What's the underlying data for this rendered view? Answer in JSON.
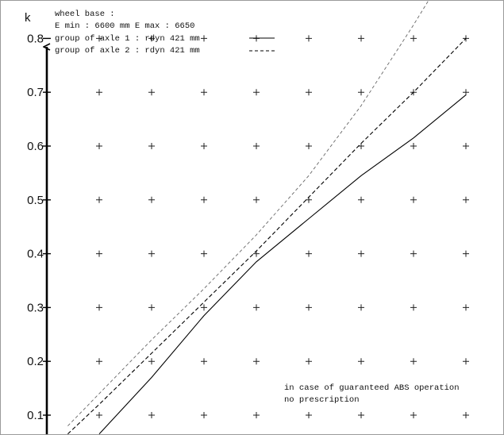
{
  "chart_data": {
    "type": "line",
    "ylabel": "k",
    "ylim": [
      0.05,
      0.82
    ],
    "yticks": [
      0.1,
      0.2,
      0.3,
      0.4,
      0.5,
      0.6,
      0.7,
      0.8
    ],
    "ytick_labels": [
      "0.1",
      "0.2",
      "0.3",
      "0.4",
      "0.5",
      "0.6",
      "0.7",
      "0.8"
    ],
    "xlim": [
      0,
      9
    ],
    "grid_x": [
      1,
      2,
      3,
      4,
      5,
      6,
      7,
      8
    ],
    "grid": true,
    "legend_placement": "top-left",
    "legend_lines": [
      "wheel base :",
      "E min : 6600 mm  E max : 6650",
      "group of axle 1 : rdyn 421 mm",
      "group of axle 2 : rdyn 421 mm"
    ],
    "series": [
      {
        "name": "group of axle 1 : rdyn 421 mm",
        "style": "solid",
        "x": [
          1.0,
          2.0,
          3.0,
          4.0,
          5.0,
          6.0,
          7.0,
          8.0
        ],
        "y": [
          0.065,
          0.17,
          0.285,
          0.385,
          0.465,
          0.545,
          0.615,
          0.695
        ]
      },
      {
        "name": "group of axle 2 : rdyn 421 mm",
        "style": "dashed",
        "x": [
          0.4,
          1.0,
          2.0,
          3.0,
          4.0,
          5.0,
          6.0,
          7.0,
          8.0
        ],
        "y": [
          0.065,
          0.12,
          0.215,
          0.31,
          0.405,
          0.505,
          0.605,
          0.7,
          0.8
        ]
      },
      {
        "name": "",
        "style": "dashed-light",
        "x": [
          0.4,
          1.0,
          2.0,
          3.0,
          4.0,
          5.0,
          6.0,
          7.0,
          7.6
        ],
        "y": [
          0.08,
          0.14,
          0.24,
          0.335,
          0.435,
          0.545,
          0.675,
          0.825,
          0.92
        ]
      }
    ],
    "annotations": [
      "in case of guaranteed ABS operation",
      "no prescription"
    ]
  }
}
